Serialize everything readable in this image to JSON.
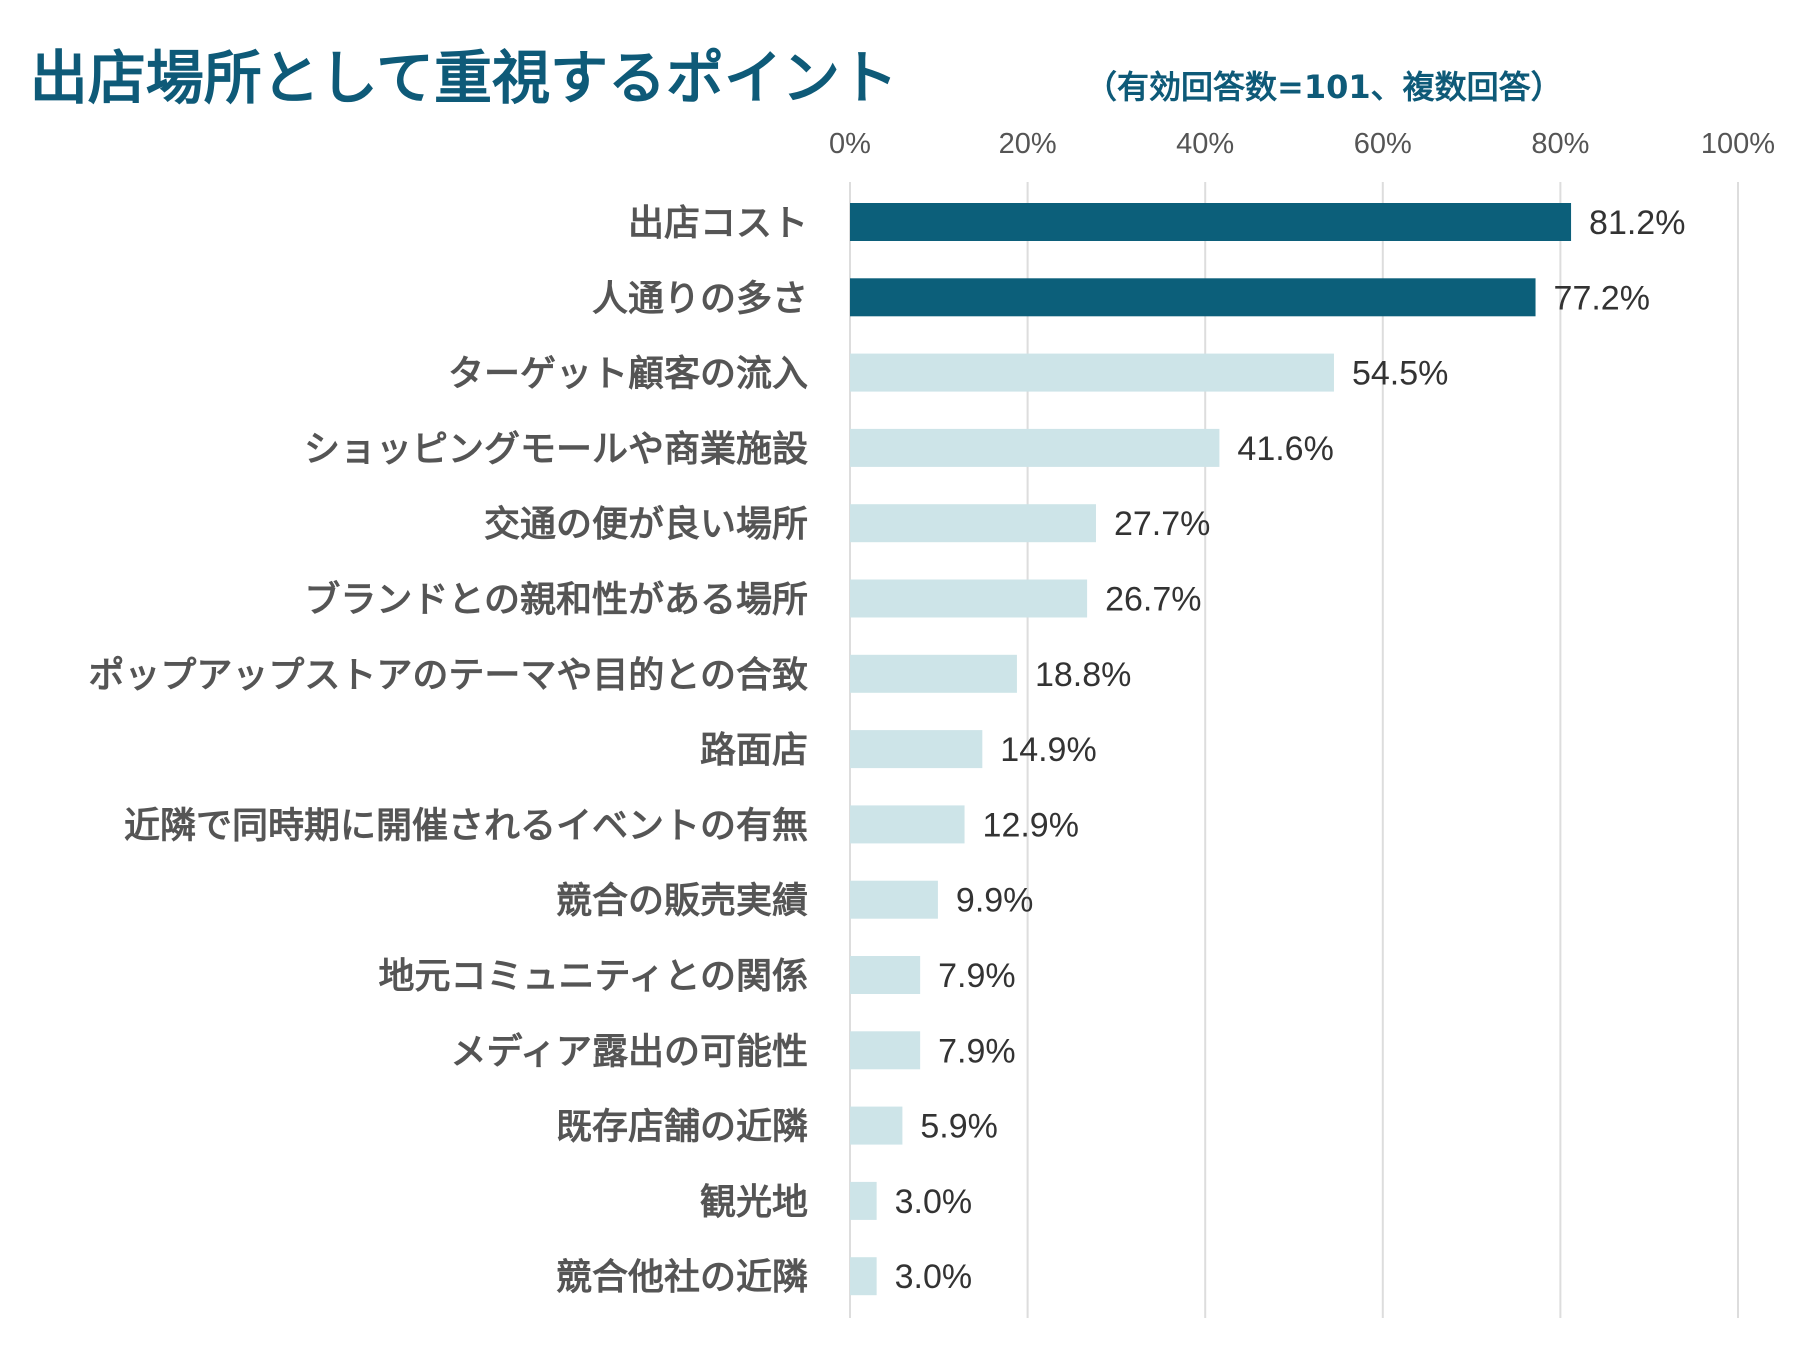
{
  "chart_data": {
    "type": "bar",
    "orientation": "horizontal",
    "title": "出店場所として重視するポイント",
    "subtitle": "（有効回答数=101、複数回答）",
    "categories": [
      "出店コスト",
      "人通りの多さ",
      "ターゲット顧客の流入",
      "ショッピングモールや商業施設",
      "交通の便が良い場所",
      "ブランドとの親和性がある場所",
      "ポップアップストアのテーマや目的との合致",
      "路面店",
      "近隣で同時期に開催されるイベントの有無",
      "競合の販売実績",
      "地元コミュニティとの関係",
      "メディア露出の可能性",
      "既存店舗の近隣",
      "観光地",
      "競合他社の近隣"
    ],
    "values": [
      81.2,
      77.2,
      54.5,
      41.6,
      27.7,
      26.7,
      18.8,
      14.9,
      12.9,
      9.9,
      7.9,
      7.9,
      5.9,
      3.0,
      3.0
    ],
    "value_labels": [
      "81.2%",
      "77.2%",
      "54.5%",
      "41.6%",
      "27.7%",
      "26.7%",
      "18.8%",
      "14.9%",
      "12.9%",
      "9.9%",
      "7.9%",
      "7.9%",
      "5.9%",
      "3.0%",
      "3.0%"
    ],
    "highlight_count": 2,
    "xlim": [
      0,
      100
    ],
    "ticks": [
      0,
      20,
      40,
      60,
      80,
      100
    ],
    "tick_labels": [
      "0%",
      "20%",
      "40%",
      "60%",
      "80%",
      "100%"
    ],
    "axis_position": "top",
    "grid": true,
    "xlabel": "",
    "ylabel": ""
  },
  "colors": {
    "title": "#0e5a78",
    "highlight_bar": "#0c5f7a",
    "normal_bar": "#cde4e8",
    "grid": "#dddddd",
    "category_text": "#555555",
    "value_text": "#333333"
  }
}
